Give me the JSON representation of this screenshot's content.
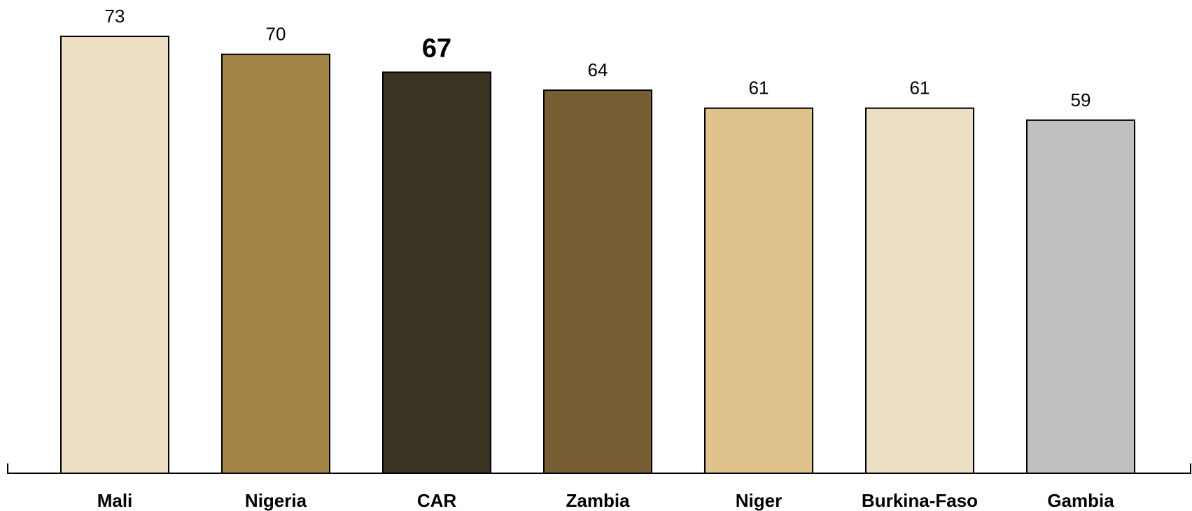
{
  "chart_data": {
    "type": "bar",
    "categories": [
      "Mali",
      "Nigeria",
      "CAR",
      "Zambia",
      "Niger",
      "Burkina-Faso",
      "Gambia"
    ],
    "values": [
      73,
      70,
      67,
      64,
      61,
      61,
      59
    ],
    "value_labels": [
      "73",
      "70",
      "67",
      "64",
      "61",
      "61",
      "59"
    ],
    "highlighted_category": "CAR",
    "colors": [
      "#EDDFC4",
      "#A48447",
      "#3A3222",
      "#765F34",
      "#DFC28C",
      "#EDDFC4",
      "#C0C0C0"
    ],
    "ylim": [
      0,
      73
    ],
    "grid": false,
    "legend": "none"
  }
}
